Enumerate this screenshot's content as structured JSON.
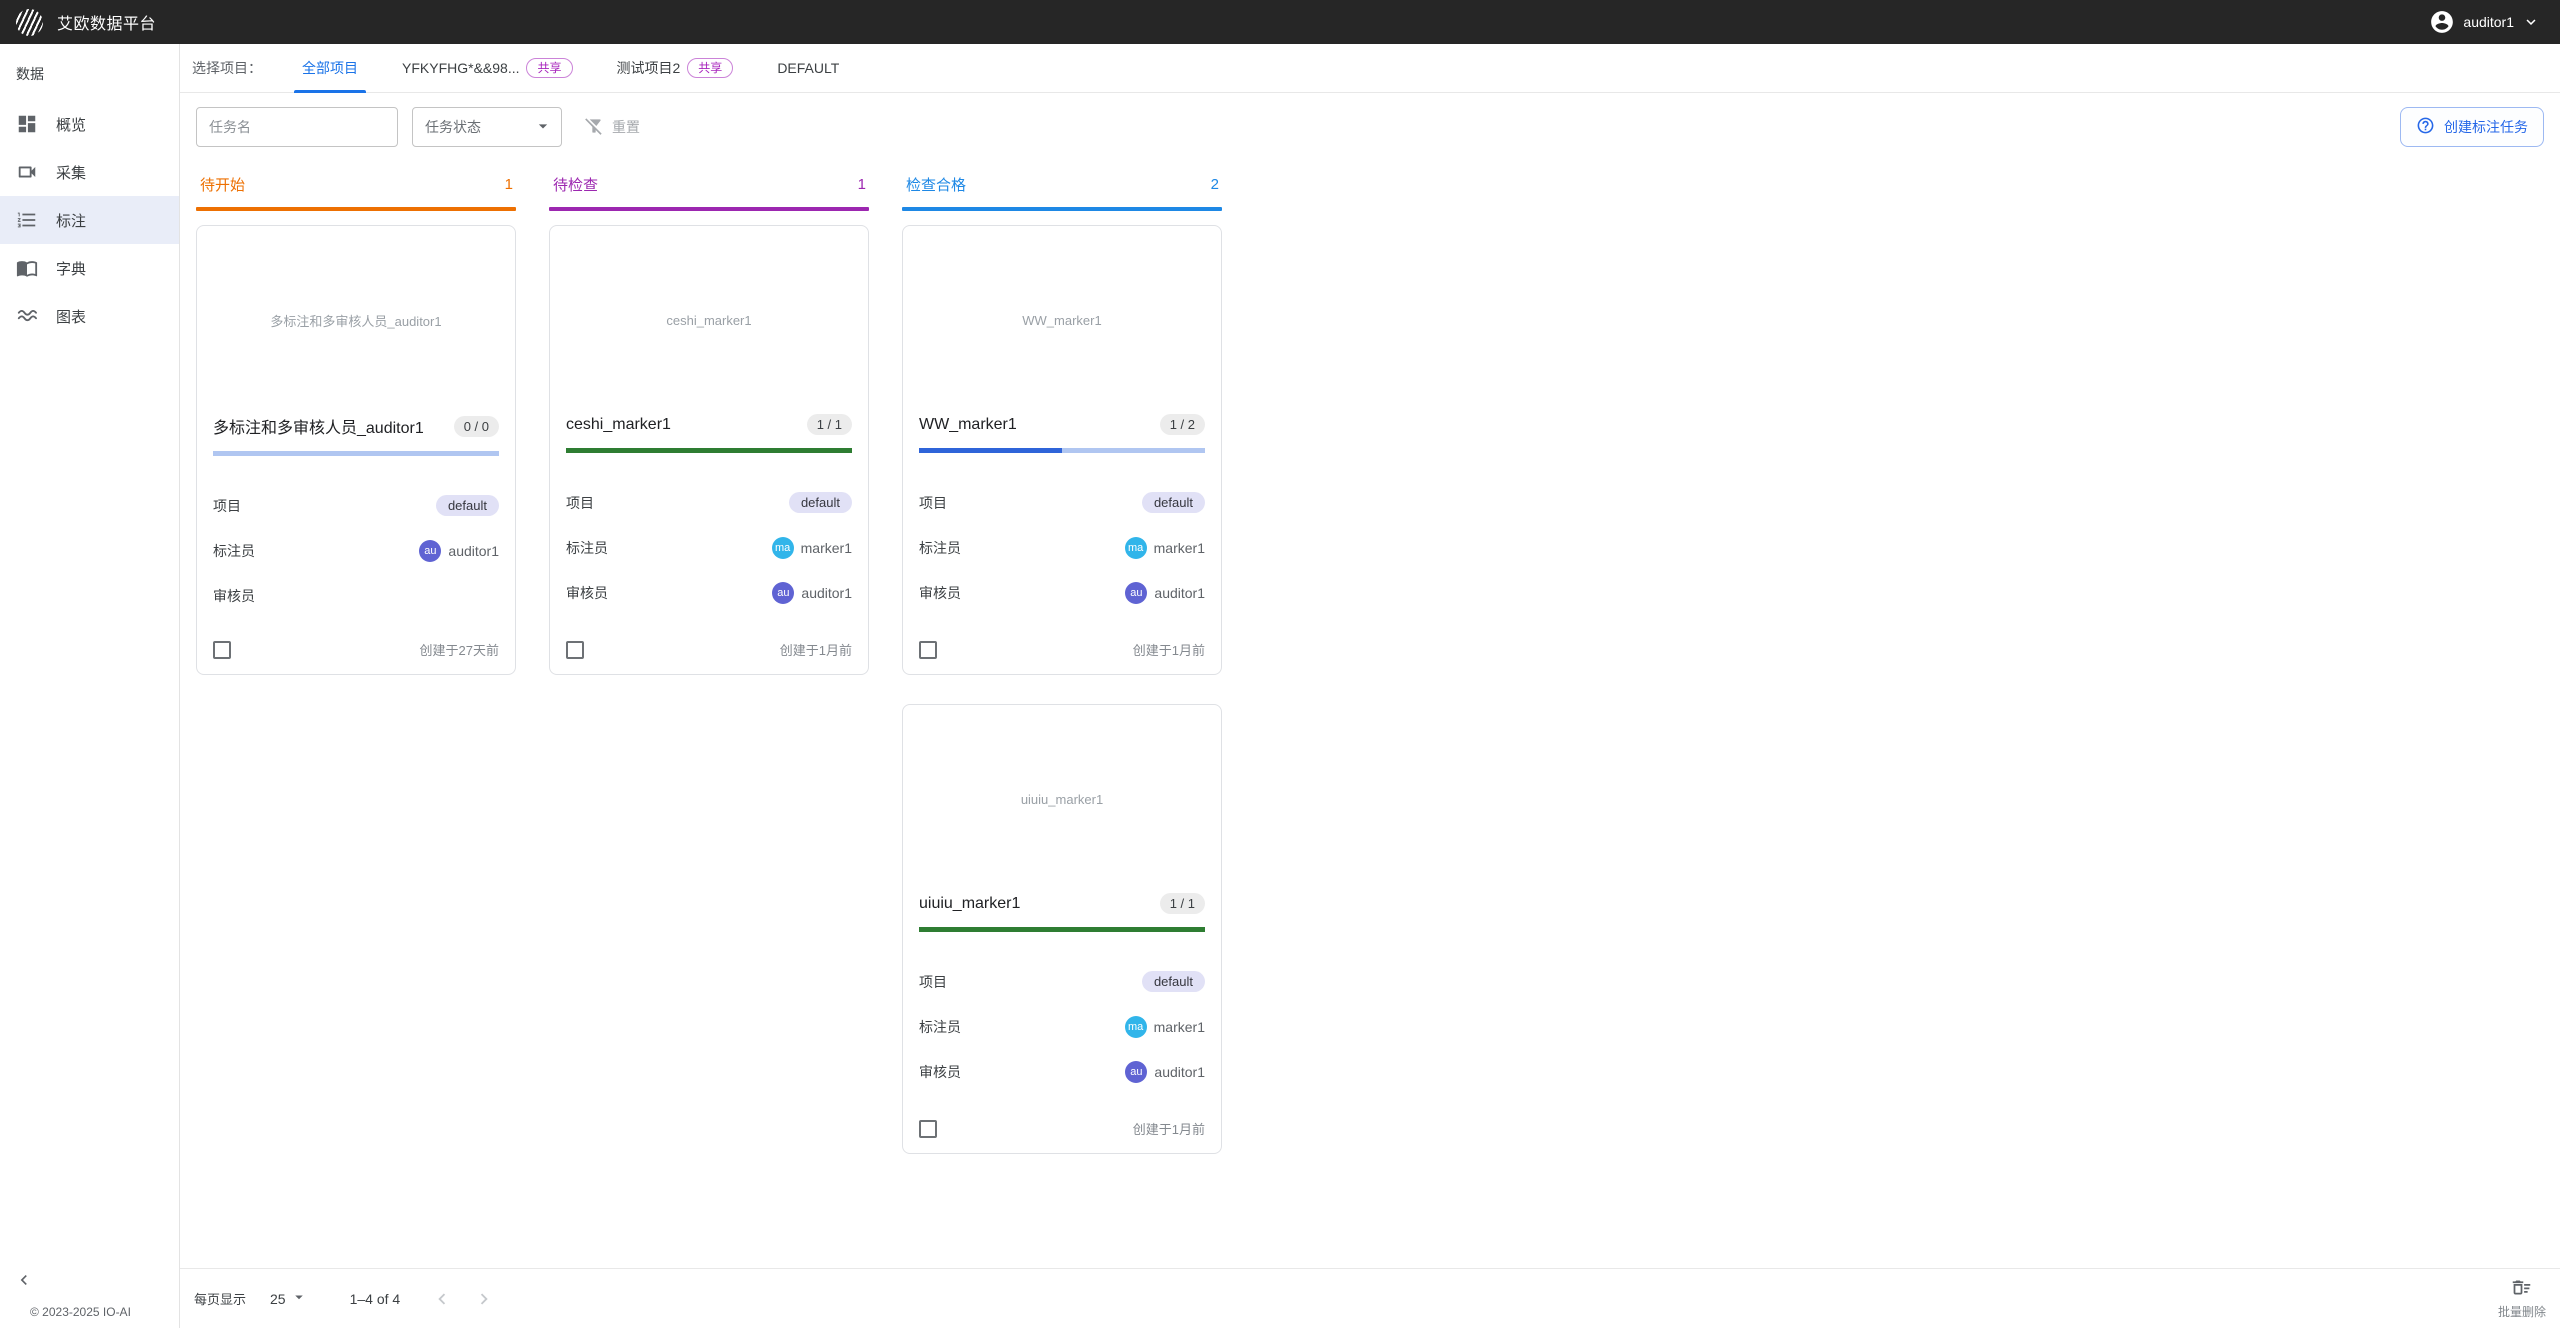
{
  "topbar": {
    "title": "艾欧数据平台",
    "user": "auditor1"
  },
  "sidebar": {
    "section": "数据",
    "items": [
      {
        "label": "概览",
        "icon": "dashboard-icon",
        "active": false
      },
      {
        "label": "采集",
        "icon": "videocam-icon",
        "active": false
      },
      {
        "label": "标注",
        "icon": "list-numbered-icon",
        "active": true
      },
      {
        "label": "字典",
        "icon": "book-icon",
        "active": false
      },
      {
        "label": "图表",
        "icon": "waves-icon",
        "active": false
      }
    ],
    "copyright": "© 2023-2025 IO-AI"
  },
  "tabs": {
    "label": "选择项目：",
    "shared_badge": "共享",
    "items": [
      {
        "label": "全部项目",
        "active": true,
        "shared": false
      },
      {
        "label": "YFKYFHG*&&98...",
        "active": false,
        "shared": true
      },
      {
        "label": "测试项目2",
        "active": false,
        "shared": true
      },
      {
        "label": "DEFAULT",
        "active": false,
        "shared": false
      }
    ]
  },
  "toolbar": {
    "task_name_placeholder": "任务名",
    "task_status_placeholder": "任务状态",
    "reset_label": "重置",
    "create_label": "创建标注任务"
  },
  "board": {
    "field_labels": {
      "project": "项目",
      "marker": "标注员",
      "auditor": "审核员"
    },
    "columns": [
      {
        "title": "待开始",
        "count": "1",
        "color": "#ed7002",
        "cards": [
          {
            "thumb_text": "多标注和多审核人员_auditor1",
            "title": "多标注和多审核人员_auditor1",
            "badge": "0 / 0",
            "progress": {
              "percent": 0,
              "fill": "#2f64d9",
              "track": "#b0c6f1"
            },
            "project": "default",
            "marker": {
              "initials": "au",
              "color": "#5f63d3",
              "name": "auditor1"
            },
            "auditor": null,
            "created": "创建于27天前"
          }
        ]
      },
      {
        "title": "待检查",
        "count": "1",
        "color": "#9c27b0",
        "cards": [
          {
            "thumb_text": "ceshi_marker1",
            "title": "ceshi_marker1",
            "badge": "1 / 1",
            "progress": {
              "percent": 100,
              "fill": "#2e7d32",
              "track": "#b0c6f1"
            },
            "project": "default",
            "marker": {
              "initials": "ma",
              "color": "#31b5ea",
              "name": "marker1"
            },
            "auditor": {
              "initials": "au",
              "color": "#5f63d3",
              "name": "auditor1"
            },
            "created": "创建于1月前"
          }
        ]
      },
      {
        "title": "检查合格",
        "count": "2",
        "color": "#1e88e5",
        "cards": [
          {
            "thumb_text": "WW_marker1",
            "title": "WW_marker1",
            "badge": "1 / 2",
            "progress": {
              "percent": 50,
              "fill": "#2f64d9",
              "track": "#b0c6f1"
            },
            "project": "default",
            "marker": {
              "initials": "ma",
              "color": "#31b5ea",
              "name": "marker1"
            },
            "auditor": {
              "initials": "au",
              "color": "#5f63d3",
              "name": "auditor1"
            },
            "created": "创建于1月前"
          },
          {
            "thumb_text": "uiuiu_marker1",
            "title": "uiuiu_marker1",
            "badge": "1 / 1",
            "progress": {
              "percent": 100,
              "fill": "#2e7d32",
              "track": "#b0c6f1"
            },
            "project": "default",
            "marker": {
              "initials": "ma",
              "color": "#31b5ea",
              "name": "marker1"
            },
            "auditor": {
              "initials": "au",
              "color": "#5f63d3",
              "name": "auditor1"
            },
            "created": "创建于1月前"
          }
        ]
      }
    ]
  },
  "pagination": {
    "rows_label": "每页显示",
    "rows_value": "25",
    "range": "1–4 of 4"
  },
  "actions": {
    "batch_delete": "批量删除"
  }
}
